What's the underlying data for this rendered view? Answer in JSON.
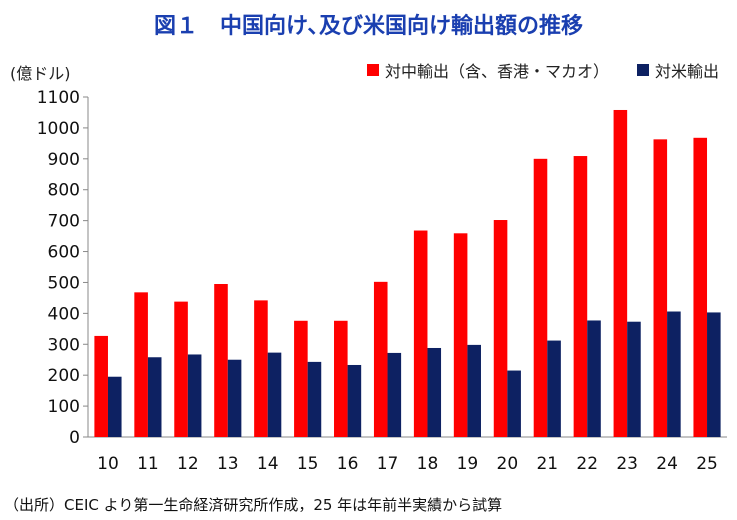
{
  "title": "図１　中国向け､及び米国向け輸出額の推移",
  "unit_label": "(億ドル)",
  "source_note": "（出所）CEIC より第一生命経済研究所作成，25 年は年前半実績から試算",
  "chart_data": {
    "type": "bar",
    "categories": [
      "10",
      "11",
      "12",
      "13",
      "14",
      "15",
      "16",
      "17",
      "18",
      "19",
      "20",
      "21",
      "22",
      "23",
      "24",
      "25"
    ],
    "series": [
      {
        "name": "対中輸出（含、香港・マカオ）",
        "color": "#ff0000",
        "values": [
          327,
          468,
          438,
          495,
          442,
          376,
          376,
          502,
          668,
          659,
          702,
          900,
          909,
          1058,
          963,
          968
        ]
      },
      {
        "name": "対米輸出",
        "color": "#0d2162",
        "values": [
          195,
          258,
          267,
          250,
          273,
          243,
          233,
          272,
          288,
          298,
          215,
          312,
          377,
          373,
          406,
          403
        ]
      }
    ],
    "ylim": [
      0,
      1100
    ],
    "yticks": [
      "0",
      "100",
      "200",
      "300",
      "400",
      "500",
      "600",
      "700",
      "800",
      "900",
      "1000",
      "1100"
    ],
    "legend_position": "top-right",
    "grid": false
  }
}
